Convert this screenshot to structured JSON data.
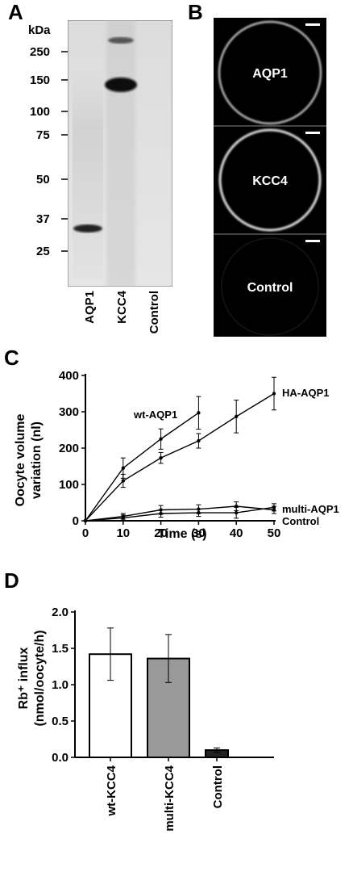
{
  "panels": {
    "A": {
      "letter": "A",
      "kda_label": "kDa",
      "markers": [
        "250",
        "150",
        "100",
        "75",
        "50",
        "37",
        "25"
      ],
      "lanes": [
        "AQP1",
        "KCC4",
        "Control"
      ]
    },
    "B": {
      "letter": "B",
      "cells": [
        "AQP1",
        "KCC4",
        "Control"
      ]
    },
    "C": {
      "letter": "C",
      "chart_data": {
        "type": "line",
        "xlabel": "Time (s)",
        "ylabel_line1": "Oocyte volume",
        "ylabel_line2": "variation (nl)",
        "xlim": [
          0,
          50
        ],
        "ylim": [
          0,
          400
        ],
        "xticks": [
          0,
          10,
          20,
          30,
          40,
          50
        ],
        "yticks": [
          0,
          100,
          200,
          300,
          400
        ],
        "series": [
          {
            "name": "wt-AQP1",
            "x": [
              0,
              10,
              20,
              30
            ],
            "y": [
              0,
              145,
              225,
              297
            ],
            "err": [
              0,
              28,
              28,
              45
            ]
          },
          {
            "name": "HA-AQP1",
            "x": [
              0,
              10,
              20,
              30,
              40,
              50
            ],
            "y": [
              0,
              110,
              173,
              220,
              287,
              350
            ],
            "err": [
              0,
              18,
              15,
              20,
              45,
              45
            ]
          },
          {
            "name": "multi-AQP1",
            "x": [
              0,
              10,
              20,
              30,
              40,
              50
            ],
            "y": [
              0,
              12,
              30,
              32,
              40,
              30
            ],
            "err": [
              0,
              8,
              12,
              12,
              12,
              10
            ]
          },
          {
            "name": "Control",
            "x": [
              0,
              10,
              20,
              30,
              40,
              50
            ],
            "y": [
              0,
              8,
              20,
              22,
              22,
              37
            ],
            "err": [
              0,
              8,
              10,
              10,
              15,
              10
            ]
          }
        ]
      }
    },
    "D": {
      "letter": "D",
      "chart_data": {
        "type": "bar",
        "ylabel_line1": "Rb⁺ influx",
        "ylabel_line2": "(nmol/oocyte/h)",
        "ylim": [
          0,
          2.0
        ],
        "yticks": [
          "0.0",
          "0.5",
          "1.0",
          "1.5",
          "2.0"
        ],
        "categories": [
          "wt-KCC4",
          "multi-KCC4",
          "Control"
        ],
        "values": [
          1.42,
          1.36,
          0.1
        ],
        "errors": [
          0.36,
          0.33,
          0.03
        ],
        "colors": [
          "#ffffff",
          "#999999",
          "#222222"
        ]
      }
    }
  }
}
